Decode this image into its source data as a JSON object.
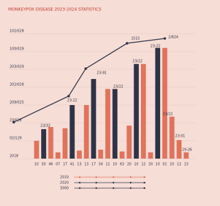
{
  "chart_data": {
    "type": "bar",
    "title": "MONKEYPOX DISEASE 2023-2024 STATISTICS",
    "categories": [
      "10",
      "50",
      "46",
      "07",
      "17",
      "41",
      "13",
      "13",
      "17",
      "34",
      "11",
      "10",
      "63",
      "20",
      "10",
      "12",
      "20",
      "10",
      "01",
      "10",
      "12",
      "13"
    ],
    "series": [
      {
        "name": "2010",
        "color": "#e0735c",
        "values": [
          1.0,
          null,
          1.77,
          0.35,
          1.7,
          null,
          0.45,
          3.0,
          null,
          0.5,
          3.9,
          null,
          0.4,
          1.85,
          null,
          5.3,
          0.35,
          null,
          6.2,
          2.35,
          1.04,
          0.35
        ]
      },
      {
        "name": "2020",
        "color": "#2e3347",
        "values": [
          null,
          1.65,
          null,
          null,
          null,
          3.0,
          null,
          null,
          4.46,
          null,
          null,
          3.9,
          null,
          null,
          5.3,
          null,
          null,
          6.2,
          null,
          null,
          null,
          null
        ]
      },
      {
        "name": "3000",
        "type": "line",
        "color": "#2e3347",
        "x": [
          -3.2,
          4.5,
          6.9,
          12.7,
          18.0
        ],
        "values": [
          2.04,
          3.5,
          5.04,
          6.46,
          6.73
        ]
      }
    ],
    "annotations": [
      "23/32",
      "23:22",
      "23:91",
      "23/22",
      "23/22",
      "1515",
      "23:22",
      "2/824",
      "23/22",
      "23:01",
      "29:26"
    ],
    "ylim": [
      0,
      7.5
    ],
    "yticks": [
      {
        "value": 0,
        "label": "2018"
      },
      {
        "value": 1,
        "label": "02/129"
      },
      {
        "value": 2,
        "label": "23/028"
      },
      {
        "value": 3,
        "label": "209/025"
      },
      {
        "value": 4,
        "label": "202/028"
      },
      {
        "value": 5,
        "label": "203/029"
      },
      {
        "value": 6,
        "label": "100/029"
      },
      {
        "value": 7,
        "label": "102/028"
      }
    ],
    "grid": true
  }
}
